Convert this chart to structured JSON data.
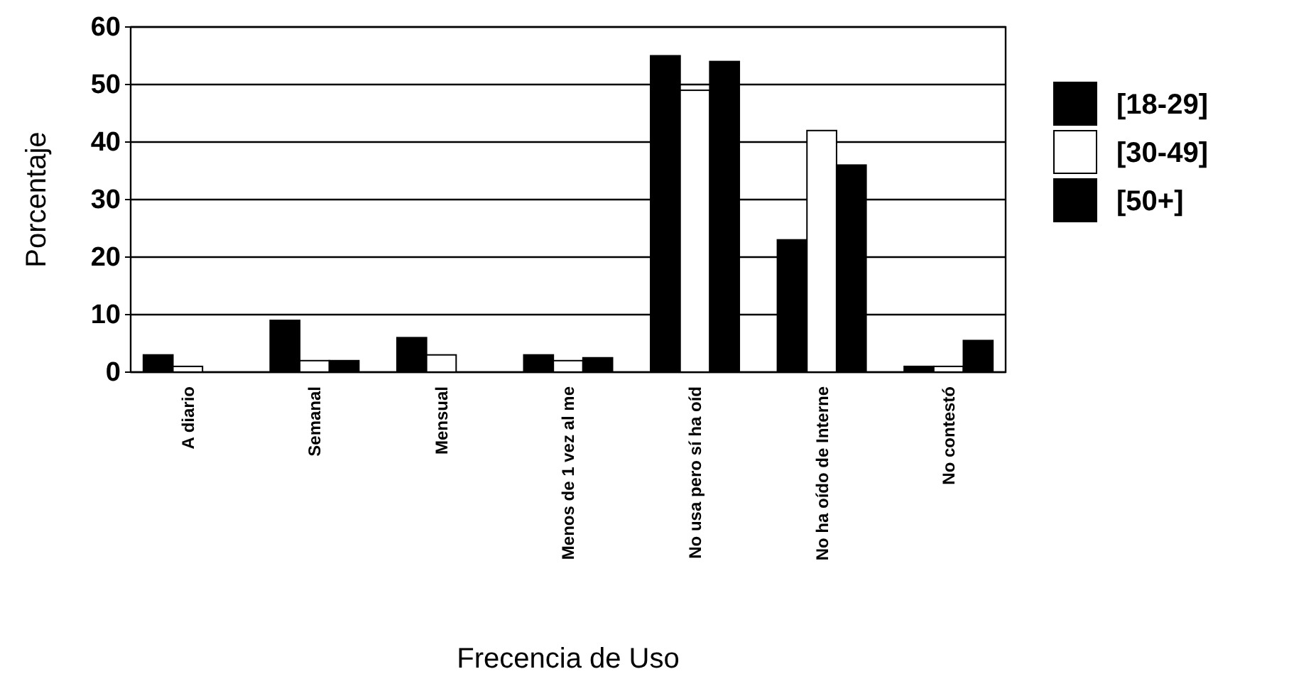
{
  "chart_data": {
    "type": "bar",
    "xlabel": "Frecencia de Uso",
    "ylabel": "Porcentaje",
    "categories": [
      "A diario",
      "Semanal",
      "Mensual",
      "Menos de 1 vez al me",
      "No usa pero sí ha oíd",
      "No ha oído de Interne",
      "No contestó"
    ],
    "series": [
      {
        "name": "[18-29]",
        "color": "#000000",
        "values": [
          3,
          9,
          6,
          3,
          55,
          23,
          1
        ]
      },
      {
        "name": "[30-49]",
        "color": "#ffffff",
        "values": [
          1,
          2,
          3,
          2,
          49,
          42,
          1
        ]
      },
      {
        "name": "[50+]",
        "color": "#000000",
        "values": [
          0,
          2,
          0,
          2.5,
          54,
          36,
          5.5
        ]
      }
    ],
    "ylim": [
      0,
      60
    ],
    "yticks": [
      0,
      10,
      20,
      30,
      40,
      50,
      60
    ],
    "grid": "y",
    "legend": "right"
  }
}
